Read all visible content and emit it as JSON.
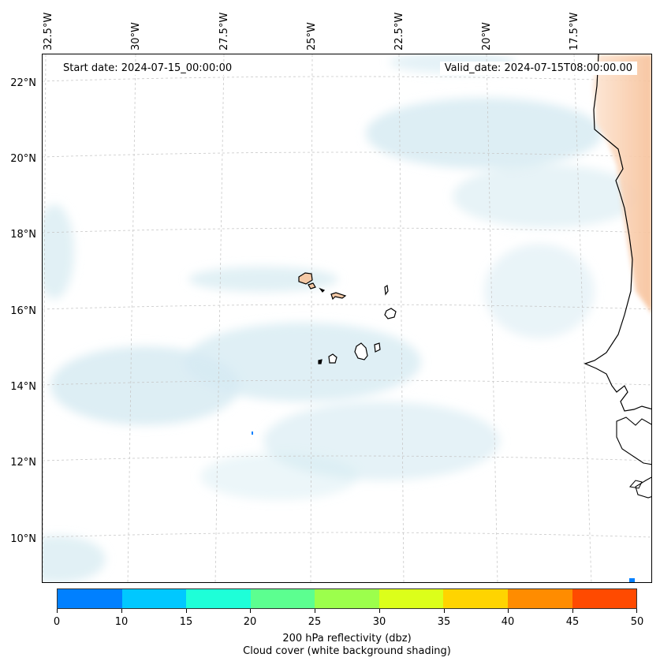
{
  "map": {
    "info": {
      "start_date": "Start date: 2024-07-15_00:00:00",
      "valid_date": "Valid_date: 2024-07-15T08:00:00.00"
    },
    "longitude_labels": [
      "32.5°W",
      "30°W",
      "27.5°W",
      "25°W",
      "22.5°W",
      "20°W",
      "17.5°W"
    ],
    "latitude_labels": [
      "22°N",
      "20°N",
      "18°N",
      "16°N",
      "14°N",
      "12°N",
      "10°N"
    ],
    "colors": {
      "cloud": "#d4eaf1",
      "land_warm": "#f6c8a4",
      "island_fill": "#f4c9a6",
      "coast": "#000000",
      "grid": "#c8c8c8"
    }
  },
  "colorbar": {
    "ticks": [
      "0",
      "10",
      "15",
      "20",
      "25",
      "30",
      "35",
      "40",
      "45",
      "50"
    ],
    "colors": [
      "#0080ff",
      "#00c8ff",
      "#1effd8",
      "#5cff90",
      "#9cff4c",
      "#dcff1a",
      "#ffd400",
      "#ff8c00",
      "#ff4a00"
    ],
    "label_line1": "200 hPa reflectivity (dbz)",
    "label_line2": "Cloud cover (white background shading)"
  }
}
